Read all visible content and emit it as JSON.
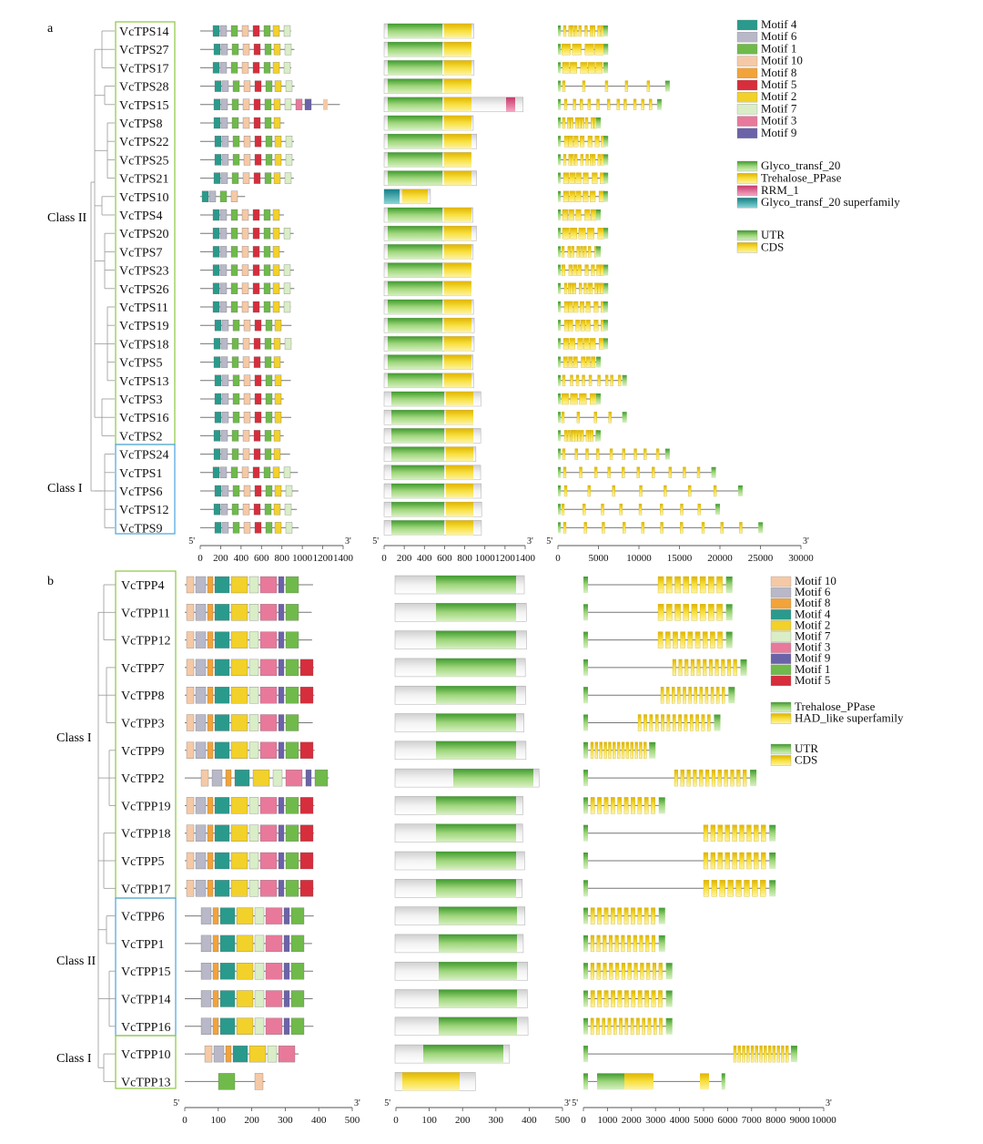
{
  "panels": {
    "a": {
      "label": "a",
      "class_labels": [
        "Class II",
        "Class I"
      ],
      "genes": [
        "VcTPS14",
        "VcTPS27",
        "VcTPS17",
        "VcTPS28",
        "VcTPS15",
        "VcTPS8",
        "VcTPS22",
        "VcTPS25",
        "VcTPS21",
        "VcTPS10",
        "VcTPS4",
        "VcTPS20",
        "VcTPS7",
        "VcTPS23",
        "VcTPS26",
        "VcTPS11",
        "VcTPS19",
        "VcTPS18",
        "VcTPS5",
        "VcTPS13",
        "VcTPS3",
        "VcTPS16",
        "VcTPS2",
        "VcTPS24",
        "VcTPS1",
        "VcTPS6",
        "VcTPS12",
        "VcTPS9"
      ],
      "motif_axis_ticks": [
        "0",
        "200",
        "400",
        "600",
        "800",
        "1000",
        "1200",
        "1400"
      ],
      "domain_axis_ticks": [
        "0",
        "200",
        "400",
        "600",
        "800",
        "1000",
        "1200",
        "1400"
      ],
      "gene_axis_ticks": [
        "0",
        "5000",
        "10000",
        "15000",
        "20000",
        "25000",
        "30000"
      ],
      "motif_legend": [
        {
          "label": "Motif 4",
          "color": "#2a9a8c"
        },
        {
          "label": "Motif 6",
          "color": "#b8b8c8"
        },
        {
          "label": "Motif 1",
          "color": "#6fba4a"
        },
        {
          "label": "Motif 10",
          "color": "#f6c9a6"
        },
        {
          "label": "Motif 8",
          "color": "#f2a33a"
        },
        {
          "label": "Motif 5",
          "color": "#d62e3c"
        },
        {
          "label": "Motif 2",
          "color": "#f2d12a"
        },
        {
          "label": "Motif 7",
          "color": "#d9eec6"
        },
        {
          "label": "Motif 3",
          "color": "#e8799a"
        },
        {
          "label": "Motif 9",
          "color": "#6b63a8"
        }
      ],
      "domain_legend": [
        {
          "label": "Glyco_transf_20",
          "color": "#7cc24e"
        },
        {
          "label": "Trehalose_PPase",
          "color": "#f4d62e"
        },
        {
          "label": "RRM_1",
          "color": "#e8608a"
        },
        {
          "label": "Glyco_transf_20 superfamily",
          "color": "#1c9aa0"
        }
      ],
      "structure_legend": [
        {
          "label": "UTR",
          "color": "#7cc24e"
        },
        {
          "label": "CDS",
          "color": "#f4d62e"
        }
      ]
    },
    "b": {
      "label": "b",
      "class_labels": [
        "Class I",
        "Class II",
        "Class I"
      ],
      "genes": [
        "VcTPP4",
        "VcTPP11",
        "VcTPP12",
        "VcTPP7",
        "VcTPP8",
        "VcTPP3",
        "VcTPP9",
        "VcTPP2",
        "VcTPP19",
        "VcTPP18",
        "VcTPP5",
        "VcTPP17",
        "VcTPP6",
        "VcTPP1",
        "VcTPP15",
        "VcTPP14",
        "VcTPP16",
        "VcTPP10",
        "VcTPP13"
      ],
      "motif_axis_ticks": [
        "0",
        "100",
        "200",
        "300",
        "400",
        "500"
      ],
      "domain_axis_ticks": [
        "0",
        "100",
        "200",
        "300",
        "400",
        "500"
      ],
      "gene_axis_ticks": [
        "0",
        "1000",
        "2000",
        "3000",
        "4000",
        "5000",
        "6000",
        "7000",
        "8000",
        "9000",
        "10000"
      ],
      "motif_legend": [
        {
          "label": "Motif 10",
          "color": "#f6c9a6"
        },
        {
          "label": "Motif 6",
          "color": "#b8b8c8"
        },
        {
          "label": "Motif 8",
          "color": "#f2a33a"
        },
        {
          "label": "Motif 4",
          "color": "#2a9a8c"
        },
        {
          "label": "Motif 2",
          "color": "#f2d12a"
        },
        {
          "label": "Motif 7",
          "color": "#d9eec6"
        },
        {
          "label": "Motif 3",
          "color": "#e8799a"
        },
        {
          "label": "Motif 9",
          "color": "#6b63a8"
        },
        {
          "label": "Motif 1",
          "color": "#6fba4a"
        },
        {
          "label": "Motif 5",
          "color": "#d62e3c"
        }
      ],
      "domain_legend": [
        {
          "label": "Trehalose_PPase",
          "color": "#7cc24e"
        },
        {
          "label": "HAD_like superfamily",
          "color": "#f4d62e"
        }
      ],
      "structure_legend": [
        {
          "label": "UTR",
          "color": "#7cc24e"
        },
        {
          "label": "CDS",
          "color": "#f4d62e"
        }
      ]
    }
  },
  "end_labels": {
    "five_prime": "5'",
    "three_prime": "3'"
  }
}
